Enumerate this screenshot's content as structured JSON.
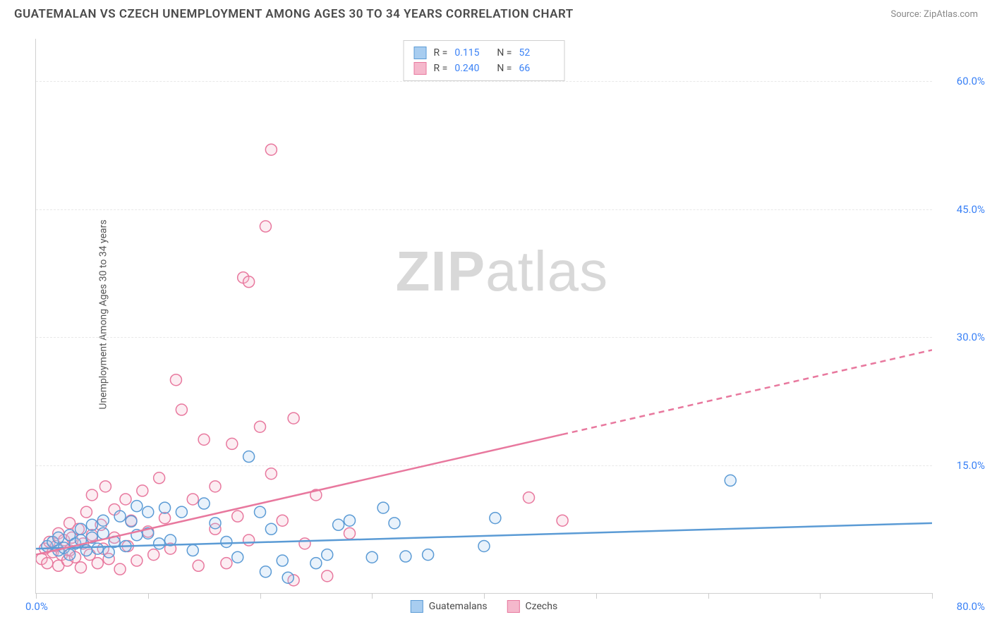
{
  "header": {
    "title": "GUATEMALAN VS CZECH UNEMPLOYMENT AMONG AGES 30 TO 34 YEARS CORRELATION CHART",
    "source": "Source: ZipAtlas.com"
  },
  "watermark": {
    "bold": "ZIP",
    "rest": "atlas"
  },
  "chart": {
    "type": "scatter",
    "y_label": "Unemployment Among Ages 30 to 34 years",
    "xlim": [
      0,
      80
    ],
    "ylim": [
      0,
      65
    ],
    "x_origin_label": "0.0%",
    "x_max_label": "80.0%",
    "y_ticks": [
      15,
      30,
      45,
      60
    ],
    "y_tick_labels": [
      "15.0%",
      "30.0%",
      "45.0%",
      "60.0%"
    ],
    "x_tick_positions": [
      0,
      10,
      20,
      30,
      40,
      50,
      60,
      70,
      80
    ],
    "grid_color": "#e8e8e8",
    "background_color": "#ffffff",
    "axis_color": "#d0d0d0",
    "tick_label_color": "#3b82f6",
    "marker_radius": 8,
    "marker_stroke_width": 1.5,
    "marker_fill_opacity": 0.25,
    "series": [
      {
        "name": "Guatemalans",
        "color_stroke": "#5b9bd5",
        "color_fill": "#a8cdf0",
        "R": "0.115",
        "N": "52",
        "trend": {
          "x1": 0,
          "y1": 5.2,
          "x2": 80,
          "y2": 8.2,
          "solid_until_x": 80,
          "stroke_width": 2.5
        },
        "points": [
          [
            1,
            5.5
          ],
          [
            1.5,
            6
          ],
          [
            2,
            5
          ],
          [
            2,
            6.5
          ],
          [
            2.5,
            5.3
          ],
          [
            3,
            6.8
          ],
          [
            3,
            4.5
          ],
          [
            3.5,
            5.8
          ],
          [
            4,
            6.2
          ],
          [
            4,
            7.5
          ],
          [
            4.5,
            5
          ],
          [
            5,
            6.5
          ],
          [
            5,
            8
          ],
          [
            5.5,
            5.2
          ],
          [
            6,
            7
          ],
          [
            6,
            8.5
          ],
          [
            6.5,
            4.8
          ],
          [
            7,
            6
          ],
          [
            7.5,
            9
          ],
          [
            8,
            5.5
          ],
          [
            8.5,
            8.4
          ],
          [
            9,
            6.8
          ],
          [
            9,
            10.2
          ],
          [
            10,
            9.5
          ],
          [
            10,
            7
          ],
          [
            11,
            5.8
          ],
          [
            11.5,
            10
          ],
          [
            12,
            6.2
          ],
          [
            13,
            9.5
          ],
          [
            14,
            5
          ],
          [
            15,
            10.5
          ],
          [
            16,
            8.2
          ],
          [
            17,
            6
          ],
          [
            18,
            4.2
          ],
          [
            19,
            16
          ],
          [
            20,
            9.5
          ],
          [
            20.5,
            2.5
          ],
          [
            21,
            7.5
          ],
          [
            22,
            3.8
          ],
          [
            22.5,
            1.8
          ],
          [
            25,
            3.5
          ],
          [
            26,
            4.5
          ],
          [
            27,
            8
          ],
          [
            28,
            8.5
          ],
          [
            30,
            4.2
          ],
          [
            31,
            10
          ],
          [
            32,
            8.2
          ],
          [
            33,
            4.3
          ],
          [
            35,
            4.5
          ],
          [
            40,
            5.5
          ],
          [
            41,
            8.8
          ],
          [
            62,
            13.2
          ]
        ]
      },
      {
        "name": "Czechs",
        "color_stroke": "#e8789e",
        "color_fill": "#f5b8cc",
        "R": "0.240",
        "N": "66",
        "trend": {
          "x1": 0,
          "y1": 4.5,
          "x2": 80,
          "y2": 28.5,
          "solid_until_x": 47,
          "stroke_width": 2.5
        },
        "points": [
          [
            0.5,
            4
          ],
          [
            0.8,
            5.2
          ],
          [
            1,
            3.5
          ],
          [
            1.2,
            6
          ],
          [
            1.5,
            4.8
          ],
          [
            1.8,
            5.5
          ],
          [
            2,
            3.2
          ],
          [
            2,
            7
          ],
          [
            2.3,
            4.5
          ],
          [
            2.5,
            6.2
          ],
          [
            2.8,
            3.8
          ],
          [
            3,
            5
          ],
          [
            3,
            8.2
          ],
          [
            3.2,
            6.5
          ],
          [
            3.5,
            4.2
          ],
          [
            3.8,
            7.5
          ],
          [
            4,
            3
          ],
          [
            4.2,
            5.8
          ],
          [
            4.5,
            9.5
          ],
          [
            4.8,
            4.5
          ],
          [
            5,
            11.5
          ],
          [
            5,
            6.8
          ],
          [
            5.5,
            3.5
          ],
          [
            5.8,
            8
          ],
          [
            6,
            5.2
          ],
          [
            6.2,
            12.5
          ],
          [
            6.5,
            4
          ],
          [
            7,
            9.8
          ],
          [
            7,
            6.5
          ],
          [
            7.5,
            2.8
          ],
          [
            8,
            11
          ],
          [
            8.2,
            5.5
          ],
          [
            8.5,
            8.5
          ],
          [
            9,
            3.8
          ],
          [
            9.5,
            12
          ],
          [
            10,
            7.2
          ],
          [
            10.5,
            4.5
          ],
          [
            11,
            13.5
          ],
          [
            11.5,
            8.8
          ],
          [
            12,
            5.2
          ],
          [
            12.5,
            25
          ],
          [
            13,
            21.5
          ],
          [
            14,
            11
          ],
          [
            14.5,
            3.2
          ],
          [
            15,
            18
          ],
          [
            16,
            7.5
          ],
          [
            16,
            12.5
          ],
          [
            17,
            3.5
          ],
          [
            17.5,
            17.5
          ],
          [
            18,
            9
          ],
          [
            18.5,
            37
          ],
          [
            19,
            6.2
          ],
          [
            19,
            36.5
          ],
          [
            20,
            19.5
          ],
          [
            20.5,
            43
          ],
          [
            21,
            14
          ],
          [
            21,
            52
          ],
          [
            22,
            8.5
          ],
          [
            23,
            20.5
          ],
          [
            23,
            1.5
          ],
          [
            24,
            5.8
          ],
          [
            25,
            11.5
          ],
          [
            26,
            2
          ],
          [
            28,
            7
          ],
          [
            44,
            11.2
          ],
          [
            47,
            8.5
          ]
        ]
      }
    ],
    "legend": {
      "correlation_box": {
        "r_label": "R =",
        "n_label": "N ="
      },
      "bottom_items": [
        "Guatemalans",
        "Czechs"
      ]
    }
  }
}
